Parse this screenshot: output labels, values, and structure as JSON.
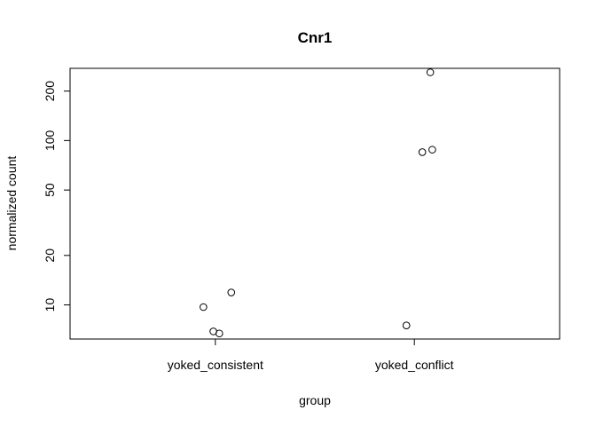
{
  "chart_data": {
    "type": "scatter",
    "title": "Cnr1",
    "xlabel": "group",
    "ylabel": "normalized count",
    "categories": [
      "yoked_consistent",
      "yoked_conflict"
    ],
    "y_scale": "log",
    "ylim": [
      6.2,
      275
    ],
    "y_ticks": [
      10,
      20,
      50,
      100,
      200
    ],
    "y_tick_labels": [
      "10",
      "20",
      "50",
      "100",
      "200"
    ],
    "grid": false,
    "points": [
      {
        "group": "yoked_consistent",
        "jitter": -0.06,
        "y": 9.7
      },
      {
        "group": "yoked_consistent",
        "jitter": 0.08,
        "y": 11.9
      },
      {
        "group": "yoked_consistent",
        "jitter": -0.01,
        "y": 6.9
      },
      {
        "group": "yoked_consistent",
        "jitter": 0.02,
        "y": 6.7
      },
      {
        "group": "yoked_conflict",
        "jitter": 0.08,
        "y": 260
      },
      {
        "group": "yoked_conflict",
        "jitter": 0.04,
        "y": 85
      },
      {
        "group": "yoked_conflict",
        "jitter": 0.09,
        "y": 88
      },
      {
        "group": "yoked_conflict",
        "jitter": -0.04,
        "y": 7.5
      }
    ]
  }
}
